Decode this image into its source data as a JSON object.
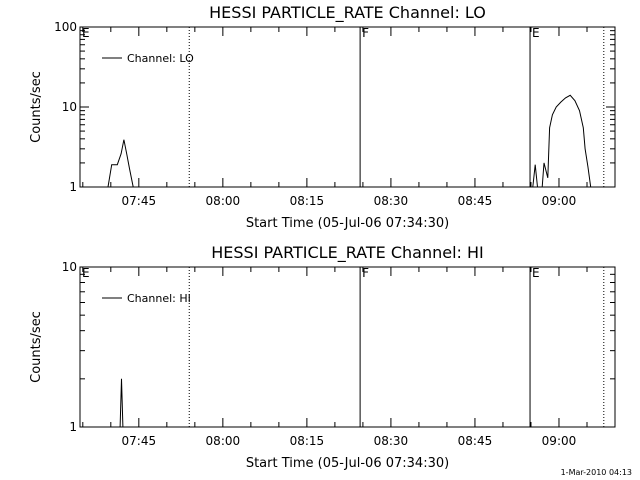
{
  "chart_data": [
    {
      "type": "line",
      "title": "HESSI PARTICLE_RATE Channel: LO",
      "xlabel": "Start Time (05-Jul-06 07:34:30)",
      "ylabel": "Counts/sec",
      "yscale": "log",
      "ylim": [
        1,
        100
      ],
      "xlim": [
        "07:34:30",
        "09:10:00"
      ],
      "x_ticks": [
        "07:45",
        "08:00",
        "08:15",
        "08:30",
        "08:45",
        "09:00"
      ],
      "y_ticks": [
        "1",
        "10",
        "100"
      ],
      "legend": {
        "entries": [
          "Channel: LO"
        ],
        "position": "top-left"
      },
      "series": [
        {
          "name": "Channel: LO",
          "points": [
            [
              "07:39:30",
              1.0
            ],
            [
              "07:40:10",
              1.9
            ],
            [
              "07:41:10",
              1.9
            ],
            [
              "07:41:50",
              2.6
            ],
            [
              "07:42:20",
              3.9
            ],
            [
              "07:42:50",
              2.6
            ],
            [
              "07:43:20",
              1.7
            ],
            [
              "07:44:00",
              1.0
            ],
            [
              "08:55:20",
              1.0
            ],
            [
              "08:55:45",
              1.9
            ],
            [
              "08:56:10",
              1.0
            ],
            [
              "08:57:00",
              1.0
            ],
            [
              "08:57:20",
              2.0
            ],
            [
              "08:58:00",
              1.3
            ],
            [
              "08:58:20",
              5.5
            ],
            [
              "08:58:50",
              8.0
            ],
            [
              "08:59:30",
              10.0
            ],
            [
              "09:00:20",
              11.5
            ],
            [
              "09:01:10",
              13.0
            ],
            [
              "09:02:00",
              14.0
            ],
            [
              "09:02:50",
              12.0
            ],
            [
              "09:03:40",
              9.0
            ],
            [
              "09:04:20",
              5.5
            ],
            [
              "09:04:40",
              3.0
            ],
            [
              "09:05:10",
              1.8
            ],
            [
              "09:05:40",
              1.0
            ]
          ]
        }
      ],
      "markers": [
        {
          "label": "E",
          "time": "07:34:30",
          "style": "dotted"
        },
        {
          "label": "",
          "time": "07:54:00",
          "style": "dotted"
        },
        {
          "label": "F",
          "time": "08:24:30",
          "style": "solid"
        },
        {
          "label": "E",
          "time": "08:54:50",
          "style": "solid"
        },
        {
          "label": "",
          "time": "09:08:00",
          "style": "dotted"
        }
      ]
    },
    {
      "type": "line",
      "title": "HESSI PARTICLE_RATE Channel: HI",
      "xlabel": "Start Time (05-Jul-06 07:34:30)",
      "ylabel": "Counts/sec",
      "yscale": "log",
      "ylim": [
        1,
        10
      ],
      "xlim": [
        "07:34:30",
        "09:10:00"
      ],
      "x_ticks": [
        "07:45",
        "08:00",
        "08:15",
        "08:30",
        "08:45",
        "09:00"
      ],
      "y_ticks": [
        "1",
        "10"
      ],
      "legend": {
        "entries": [
          "Channel: HI"
        ],
        "position": "top-left"
      },
      "series": [
        {
          "name": "Channel: HI",
          "points": [
            [
              "07:41:40",
              1.0
            ],
            [
              "07:41:55",
              2.0
            ],
            [
              "07:42:10",
              1.0
            ]
          ]
        }
      ],
      "markers": [
        {
          "label": "E",
          "time": "07:34:30",
          "style": "dotted"
        },
        {
          "label": "",
          "time": "07:54:00",
          "style": "dotted"
        },
        {
          "label": "F",
          "time": "08:24:30",
          "style": "solid"
        },
        {
          "label": "E",
          "time": "08:54:50",
          "style": "solid"
        },
        {
          "label": "",
          "time": "09:08:00",
          "style": "dotted"
        }
      ]
    }
  ],
  "footer": {
    "timestamp": "1-Mar-2010 04:13"
  }
}
